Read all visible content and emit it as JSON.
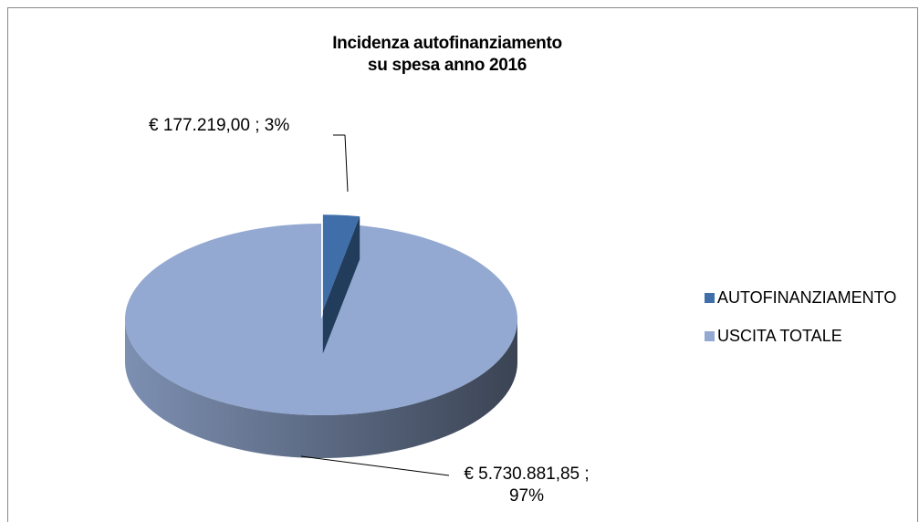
{
  "chart_data": {
    "type": "pie",
    "title": "Incidenza autofinanziamento\nsu spesa anno 2016",
    "categories": [
      "AUTOFINANZIAMENTO",
      "USCITA TOTALE"
    ],
    "values": [
      177219.0,
      5730881.85
    ],
    "value_labels": [
      "€ 177.219,00 ; 3%",
      "€ 5.730.881,85 ;\n97%"
    ],
    "colors": [
      "#3f6ea8",
      "#93a9d1"
    ],
    "legend": "right"
  }
}
